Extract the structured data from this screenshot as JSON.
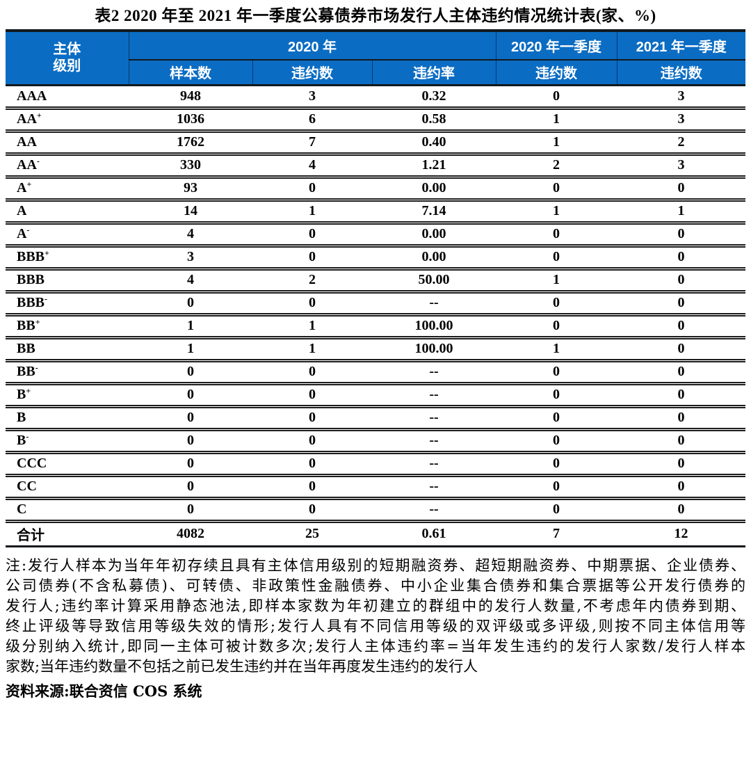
{
  "title": "表2  2020 年至 2021 年一季度公募债券市场发行人主体违约情况统计表(家、%)",
  "colors": {
    "header_bg": "#0b6cc3",
    "header_text": "#ffffff",
    "border_dark": "#14181c"
  },
  "table": {
    "header": {
      "rating_line1": "主体",
      "rating_line2": "级别",
      "year_2020": "2020 年",
      "q1_2020": "2020 年一季度",
      "q1_2021": "2021 年一季度",
      "sample": "样本数",
      "defaults": "违约数",
      "rate": "违约率",
      "q1_2020_defaults": "违约数",
      "q1_2021_defaults": "违约数"
    },
    "rows": [
      {
        "base": "AAA",
        "sup": "",
        "values": [
          "948",
          "3",
          "0.32",
          "0",
          "3"
        ]
      },
      {
        "base": "AA",
        "sup": "+",
        "values": [
          "1036",
          "6",
          "0.58",
          "1",
          "3"
        ]
      },
      {
        "base": "AA",
        "sup": "",
        "values": [
          "1762",
          "7",
          "0.40",
          "1",
          "2"
        ]
      },
      {
        "base": "AA",
        "sup": "-",
        "values": [
          "330",
          "4",
          "1.21",
          "2",
          "3"
        ]
      },
      {
        "base": "A",
        "sup": "+",
        "values": [
          "93",
          "0",
          "0.00",
          "0",
          "0"
        ]
      },
      {
        "base": "A",
        "sup": "",
        "values": [
          "14",
          "1",
          "7.14",
          "1",
          "1"
        ]
      },
      {
        "base": "A",
        "sup": "-",
        "values": [
          "4",
          "0",
          "0.00",
          "0",
          "0"
        ]
      },
      {
        "base": "BBB",
        "sup": "+",
        "values": [
          "3",
          "0",
          "0.00",
          "0",
          "0"
        ]
      },
      {
        "base": "BBB",
        "sup": "",
        "values": [
          "4",
          "2",
          "50.00",
          "1",
          "0"
        ]
      },
      {
        "base": "BBB",
        "sup": "-",
        "values": [
          "0",
          "0",
          "--",
          "0",
          "0"
        ]
      },
      {
        "base": "BB",
        "sup": "+",
        "values": [
          "1",
          "1",
          "100.00",
          "0",
          "0"
        ]
      },
      {
        "base": "BB",
        "sup": "",
        "values": [
          "1",
          "1",
          "100.00",
          "1",
          "0"
        ]
      },
      {
        "base": "BB",
        "sup": "-",
        "values": [
          "0",
          "0",
          "--",
          "0",
          "0"
        ]
      },
      {
        "base": "B",
        "sup": "+",
        "values": [
          "0",
          "0",
          "--",
          "0",
          "0"
        ]
      },
      {
        "base": "B",
        "sup": "",
        "values": [
          "0",
          "0",
          "--",
          "0",
          "0"
        ]
      },
      {
        "base": "B",
        "sup": "-",
        "values": [
          "0",
          "0",
          "--",
          "0",
          "0"
        ]
      },
      {
        "base": "CCC",
        "sup": "",
        "values": [
          "0",
          "0",
          "--",
          "0",
          "0"
        ]
      },
      {
        "base": "CC",
        "sup": "",
        "values": [
          "0",
          "0",
          "--",
          "0",
          "0"
        ]
      },
      {
        "base": "C",
        "sup": "",
        "values": [
          "0",
          "0",
          "--",
          "0",
          "0"
        ]
      }
    ],
    "total": {
      "label": "合计",
      "values": [
        "4082",
        "25",
        "0.61",
        "7",
        "12"
      ]
    }
  },
  "notes": {
    "lines": [
      "注:发行人样本为当年年初存续且具有主体信用级别的短期融资券、超短期融资券、中期票据、企业债券、",
      "公司债券(不含私募债)、可转债、非政策性金融债券、中小企业集合债券和集合票据等公开发行债券的",
      "发行人;违约率计算采用静态池法,即样本家数为年初建立的群组中的发行人数量,不考虑年内债券到期、",
      "终止评级等导致信用等级失效的情形;发行人具有不同信用等级的双评级或多评级,则按不同主体信用等",
      "级分别纳入统计,即同一主体可被计数多次;发行人主体违约率=当年发生违约的发行人家数/发行人样本",
      "家数;当年违约数量不包括之前已发生违约并在当年再度发生违约的发行人"
    ]
  },
  "source": {
    "label": "资料来源:",
    "text": "联合资信 COS 系统"
  }
}
